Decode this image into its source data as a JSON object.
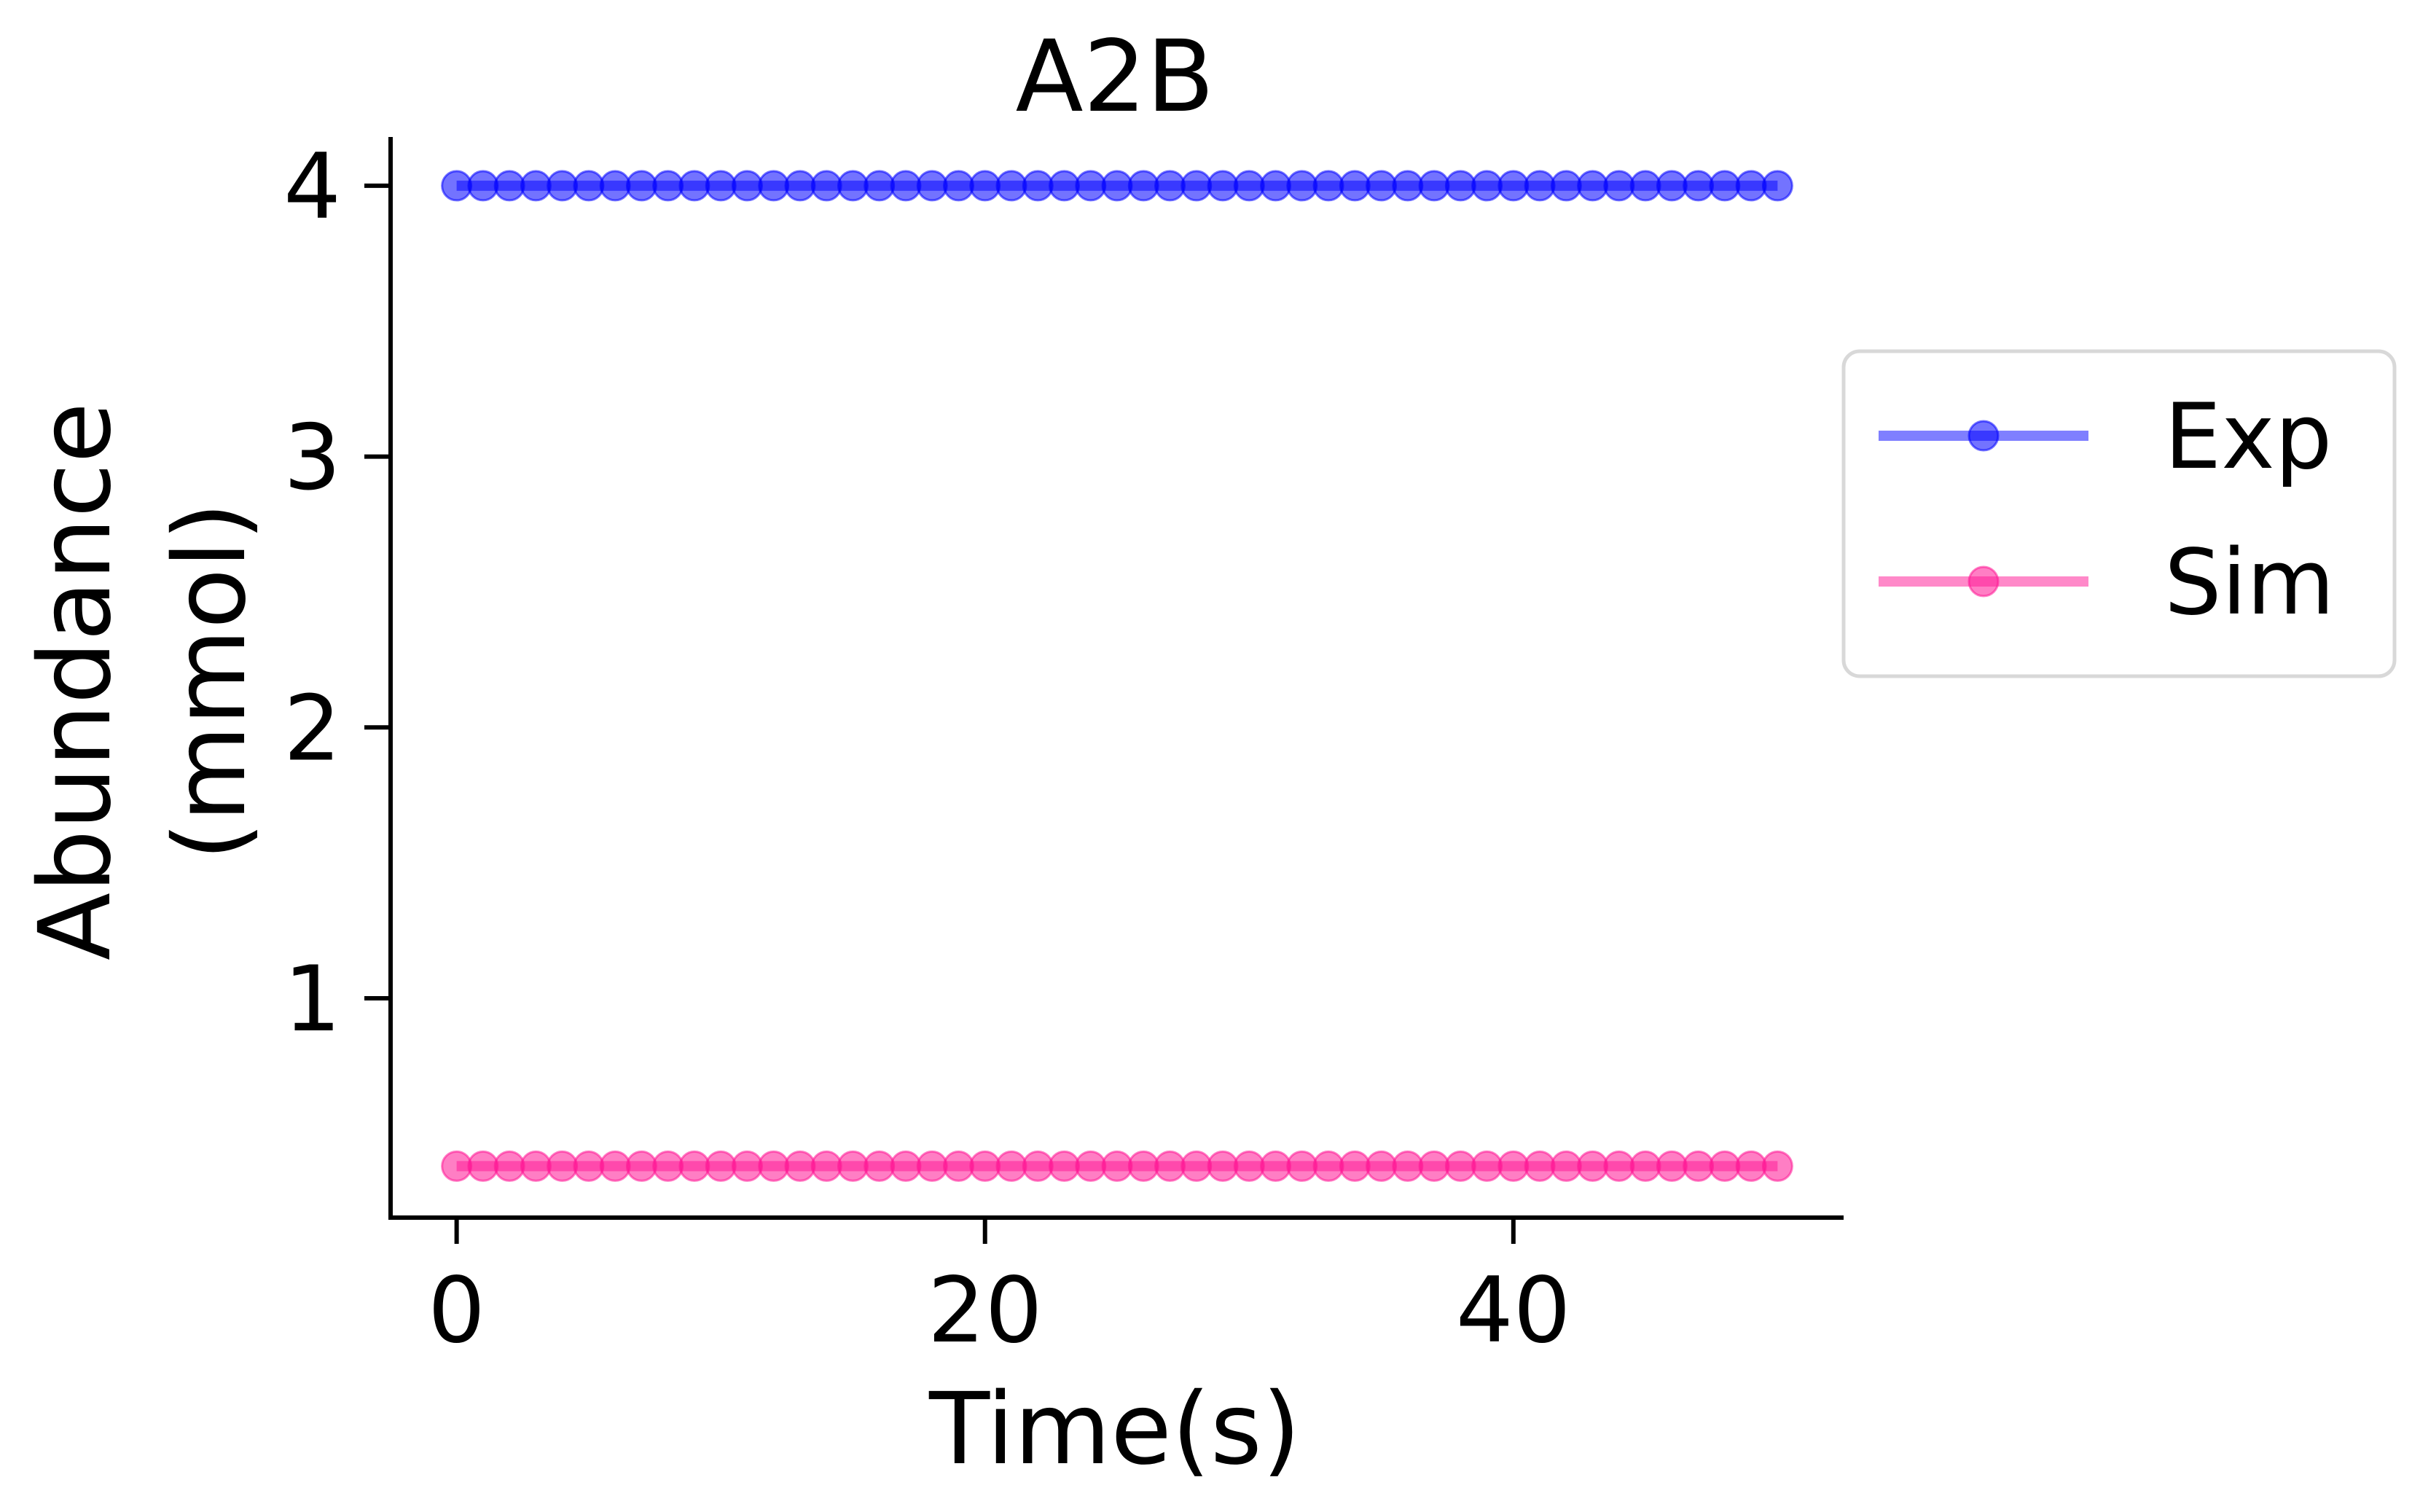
{
  "chart_data": {
    "type": "line",
    "title": "A2B",
    "xlabel": "Time(s)",
    "ylabel_lines": [
      "Abundance",
      "(mmol)"
    ],
    "x": [
      0,
      1,
      2,
      3,
      4,
      5,
      6,
      7,
      8,
      9,
      10,
      11,
      12,
      13,
      14,
      15,
      16,
      17,
      18,
      19,
      20,
      21,
      22,
      23,
      24,
      25,
      26,
      27,
      28,
      29,
      30,
      31,
      32,
      33,
      34,
      35,
      36,
      37,
      38,
      39,
      40,
      41,
      42,
      43,
      44,
      45,
      46,
      47,
      48,
      49,
      50
    ],
    "series": [
      {
        "name": "Exp",
        "color": "#0000ff",
        "constant": 4.0,
        "marker": "circle"
      },
      {
        "name": "Sim",
        "color": "#ff1493",
        "constant": 0.38,
        "marker": "circle"
      }
    ],
    "xlim": [
      -2.5,
      52.5
    ],
    "ylim": [
      0.19,
      4.18
    ],
    "xticks": [
      0,
      20,
      40
    ],
    "yticks": [
      1,
      2,
      3,
      4
    ],
    "xtick_labels": [
      "0",
      "20",
      "40"
    ],
    "ytick_labels": [
      "1",
      "2",
      "3",
      "4"
    ],
    "grid": false,
    "legend_position": "outside-right"
  }
}
